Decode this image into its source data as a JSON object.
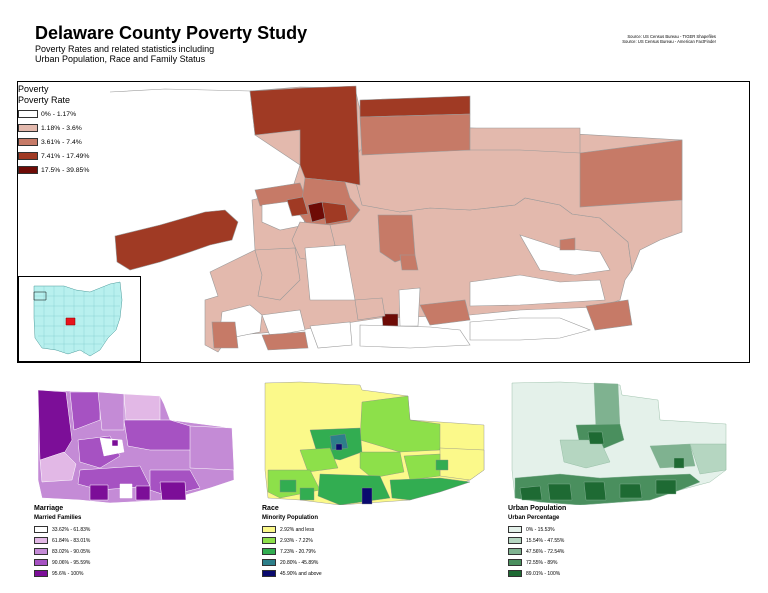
{
  "title": "Delaware County Poverty Study",
  "subtitle": [
    "Poverty Rates and related statistics including",
    "Urban Population, Race and Family Status"
  ],
  "sources": [
    "Source: US Census Bureau - TIGER Shapefiles",
    "Source: US Census Bureau - American FactFinder"
  ],
  "main_legend": {
    "heading": [
      "Poverty",
      "Poverty Rate"
    ],
    "items": [
      {
        "label": "0% - 1.17%",
        "color": "#ffffff"
      },
      {
        "label": "1.18% - 3.6%",
        "color": "#e3b9ad"
      },
      {
        "label": "3.61% - 7.4%",
        "color": "#c67a67"
      },
      {
        "label": "7.41% - 17.49%",
        "color": "#a03a24"
      },
      {
        "label": "17.5% - 39.85%",
        "color": "#6e0b06"
      }
    ]
  },
  "small_maps": [
    {
      "name": "Marriage",
      "subtitle": "Married Families",
      "items": [
        {
          "label": "33.62% - 61.83%",
          "color": "#ffffff"
        },
        {
          "label": "61.84% - 83.01%",
          "color": "#e2b8e6"
        },
        {
          "label": "83.02% - 90.05%",
          "color": "#c48bd6"
        },
        {
          "label": "90.06% - 95.59%",
          "color": "#a652c2"
        },
        {
          "label": "95.6% - 100%",
          "color": "#7c0e98"
        }
      ]
    },
    {
      "name": "Race",
      "subtitle": "Minority Population",
      "items": [
        {
          "label": "2.92% and less",
          "color": "#fbf98a"
        },
        {
          "label": "2.93% - 7.22%",
          "color": "#8de04a"
        },
        {
          "label": "7.23% - 20.79%",
          "color": "#32ad51"
        },
        {
          "label": "20.80% - 45.89%",
          "color": "#2d7f8a"
        },
        {
          "label": "45.90% and above",
          "color": "#0a0a6e"
        }
      ]
    },
    {
      "name": "Urban Population",
      "subtitle": "Urban Percentage",
      "items": [
        {
          "label": "0% - 15.53%",
          "color": "#e4f1ea"
        },
        {
          "label": "15.54% - 47.55%",
          "color": "#b5d6c1"
        },
        {
          "label": "47.56% - 72.54%",
          "color": "#7fb290"
        },
        {
          "label": "72.55% - 89%",
          "color": "#4a8f5e"
        },
        {
          "label": "89.01% - 100%",
          "color": "#1e6a33"
        }
      ]
    }
  ]
}
